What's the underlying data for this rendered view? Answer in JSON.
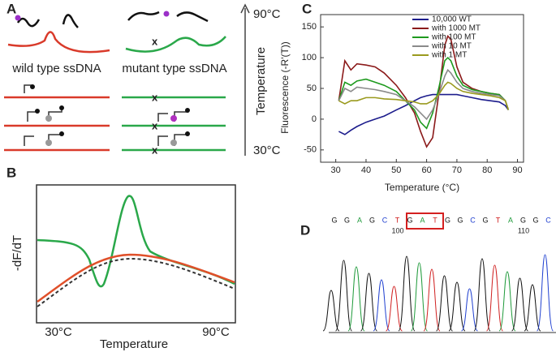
{
  "panel_a": {
    "label": "A",
    "top_temp": "90°C",
    "bottom_temp": "30°C",
    "axis_label": "Temperature",
    "wild_label": "wild type ssDNA",
    "mutant_label": "mutant type ssDNA"
  },
  "panel_b": {
    "label": "B",
    "y_label": "-dF/dT",
    "x_start": "30°C",
    "x_end": "90°C",
    "x_label": "Temperature"
  },
  "panel_d": {
    "label": "D",
    "bases": [
      "G",
      "G",
      "A",
      "G",
      "C",
      "T",
      "G",
      "A",
      "T",
      "G",
      "G",
      "C",
      "G",
      "T",
      "A",
      "G",
      "G",
      "C"
    ],
    "pos_100": "100",
    "pos_110": "110"
  },
  "chart_data": {
    "type": "line",
    "label": "C",
    "x_label": "Temperature (°C)",
    "y_label": "Fluorescence (-R'(T))",
    "x": [
      31,
      33,
      35,
      37,
      40,
      43,
      46,
      50,
      53,
      56,
      58,
      60,
      62,
      64,
      66,
      67,
      68,
      70,
      72,
      75,
      78,
      81,
      84,
      86,
      87
    ],
    "series": [
      {
        "name": "10,000 WT",
        "color": "#1c1c8c",
        "values": [
          -20,
          -25,
          -18,
          -12,
          -5,
          0,
          5,
          15,
          22,
          30,
          35,
          38,
          40,
          40,
          40,
          40,
          40,
          40,
          38,
          35,
          32,
          30,
          28,
          22,
          15
        ]
      },
      {
        "name": "with 1000 MT",
        "color": "#8b1a1a",
        "values": [
          30,
          95,
          80,
          90,
          88,
          85,
          75,
          55,
          35,
          10,
          -20,
          -45,
          -30,
          40,
          120,
          135,
          130,
          85,
          60,
          50,
          45,
          42,
          40,
          30,
          15
        ]
      },
      {
        "name": "with 100 MT",
        "color": "#1e9a1e",
        "values": [
          30,
          60,
          55,
          62,
          65,
          60,
          55,
          45,
          30,
          15,
          -5,
          -15,
          10,
          50,
          95,
          100,
          95,
          70,
          55,
          48,
          45,
          42,
          40,
          30,
          15
        ]
      },
      {
        "name": "with 10 MT",
        "color": "#8a8a8a",
        "values": [
          30,
          50,
          45,
          52,
          50,
          48,
          45,
          40,
          30,
          20,
          10,
          0,
          15,
          40,
          70,
          80,
          75,
          60,
          50,
          45,
          42,
          40,
          38,
          30,
          15
        ]
      },
      {
        "name": "with 1 MT",
        "color": "#9a9a1e",
        "values": [
          30,
          25,
          30,
          30,
          35,
          35,
          33,
          32,
          30,
          28,
          25,
          25,
          30,
          40,
          55,
          60,
          58,
          50,
          45,
          42,
          40,
          38,
          35,
          30,
          15
        ]
      }
    ],
    "xlim": [
      25,
      92
    ],
    "ylim": [
      -70,
      170
    ],
    "xticks": [
      30,
      40,
      50,
      60,
      70,
      80,
      90
    ],
    "yticks": [
      -50,
      0,
      50,
      100,
      150
    ]
  }
}
